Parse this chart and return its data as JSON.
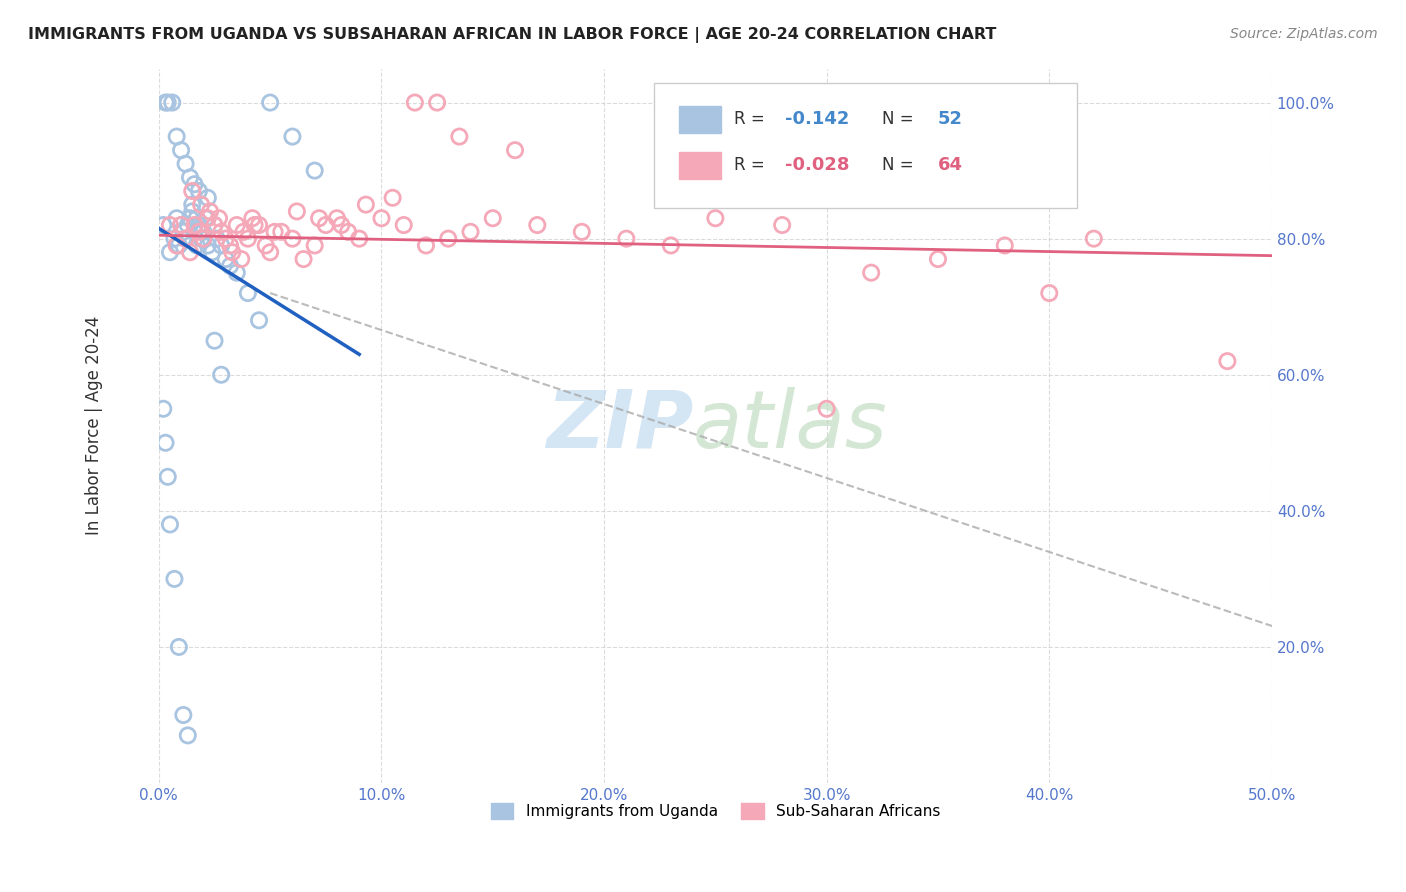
{
  "title": "IMMIGRANTS FROM UGANDA VS SUBSAHARAN AFRICAN IN LABOR FORCE | AGE 20-24 CORRELATION CHART",
  "source": "Source: ZipAtlas.com",
  "ylabel": "In Labor Force | Age 20-24",
  "xlim": [
    0.0,
    0.5
  ],
  "ylim": [
    0.0,
    1.05
  ],
  "legend_R_blue": "-0.142",
  "legend_N_blue": "52",
  "legend_R_pink": "-0.028",
  "legend_N_pink": "64",
  "blue_color": "#a8c4e0",
  "pink_color": "#f4a8b8",
  "trendline_blue_color": "#2060c0",
  "trendline_pink_color": "#e06080",
  "blue_x": [
    0.002,
    0.005,
    0.007,
    0.008,
    0.009,
    0.01,
    0.011,
    0.012,
    0.013,
    0.014,
    0.015,
    0.016,
    0.017,
    0.018,
    0.019,
    0.02,
    0.021,
    0.022,
    0.024,
    0.025,
    0.026,
    0.028,
    0.03,
    0.032,
    0.035,
    0.04,
    0.045,
    0.003,
    0.004,
    0.006,
    0.008,
    0.01,
    0.012,
    0.014,
    0.016,
    0.018,
    0.05,
    0.022,
    0.025,
    0.028,
    0.002,
    0.003,
    0.004,
    0.005,
    0.007,
    0.009,
    0.011,
    0.013,
    0.06,
    0.07,
    0.015,
    0.017
  ],
  "blue_y": [
    0.82,
    0.78,
    0.8,
    0.83,
    0.79,
    0.82,
    0.81,
    0.8,
    0.82,
    0.83,
    0.84,
    0.81,
    0.79,
    0.82,
    0.8,
    0.81,
    0.83,
    0.79,
    0.78,
    0.82,
    0.8,
    0.79,
    0.77,
    0.76,
    0.75,
    0.72,
    0.68,
    1.0,
    1.0,
    1.0,
    0.95,
    0.93,
    0.91,
    0.89,
    0.88,
    0.87,
    1.0,
    0.86,
    0.65,
    0.6,
    0.55,
    0.5,
    0.45,
    0.38,
    0.3,
    0.2,
    0.1,
    0.07,
    0.95,
    0.9,
    0.85,
    0.83
  ],
  "pink_x": [
    0.005,
    0.008,
    0.01,
    0.012,
    0.014,
    0.016,
    0.018,
    0.02,
    0.022,
    0.025,
    0.028,
    0.03,
    0.032,
    0.035,
    0.038,
    0.04,
    0.042,
    0.045,
    0.048,
    0.05,
    0.055,
    0.06,
    0.065,
    0.07,
    0.075,
    0.08,
    0.085,
    0.09,
    0.1,
    0.11,
    0.12,
    0.13,
    0.14,
    0.15,
    0.17,
    0.19,
    0.21,
    0.23,
    0.25,
    0.28,
    0.3,
    0.32,
    0.35,
    0.38,
    0.4,
    0.42,
    0.015,
    0.019,
    0.023,
    0.027,
    0.033,
    0.037,
    0.043,
    0.052,
    0.062,
    0.072,
    0.082,
    0.093,
    0.105,
    0.115,
    0.125,
    0.135,
    0.16,
    0.48
  ],
  "pink_y": [
    0.82,
    0.79,
    0.82,
    0.8,
    0.78,
    0.82,
    0.81,
    0.8,
    0.83,
    0.82,
    0.81,
    0.8,
    0.79,
    0.82,
    0.81,
    0.8,
    0.83,
    0.82,
    0.79,
    0.78,
    0.81,
    0.8,
    0.77,
    0.79,
    0.82,
    0.83,
    0.81,
    0.8,
    0.83,
    0.82,
    0.79,
    0.8,
    0.81,
    0.83,
    0.82,
    0.81,
    0.8,
    0.79,
    0.83,
    0.82,
    0.55,
    0.75,
    0.77,
    0.79,
    0.72,
    0.8,
    0.87,
    0.85,
    0.84,
    0.83,
    0.78,
    0.77,
    0.82,
    0.81,
    0.84,
    0.83,
    0.82,
    0.85,
    0.86,
    1.0,
    1.0,
    0.95,
    0.93,
    0.62
  ]
}
